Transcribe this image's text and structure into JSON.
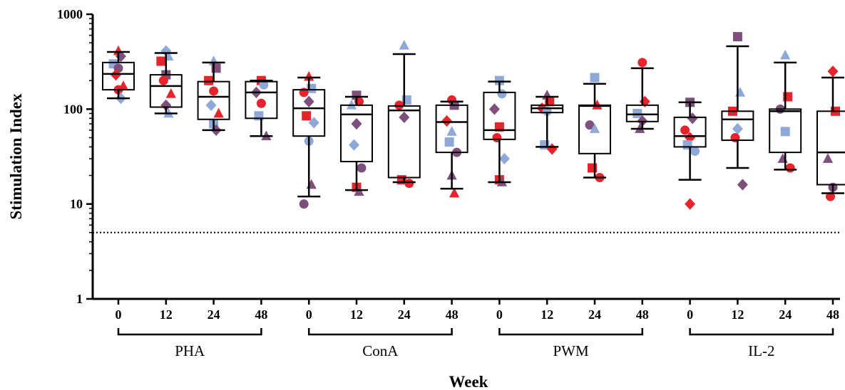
{
  "chart_data": {
    "type": "box",
    "xlabel": "Week",
    "ylabel": "Stimulation Index",
    "yscale": "log",
    "ylim": [
      1,
      1000
    ],
    "yticks": [
      "1",
      "10",
      "100",
      "1000"
    ],
    "reference_line": {
      "value": 5,
      "style": "dotted"
    },
    "groups": [
      {
        "name": "PHA",
        "boxes": [
          {
            "week": "0",
            "whisker_low": 130,
            "q1": 160,
            "median": 235,
            "q3": 310,
            "whisker_high": 400,
            "points": [
              {
                "v": 410,
                "shape": "triangle",
                "color": "red"
              },
              {
                "v": 360,
                "shape": "diamond",
                "color": "purple"
              },
              {
                "v": 300,
                "shape": "square",
                "color": "blue"
              },
              {
                "v": 270,
                "shape": "circle",
                "color": "purple"
              },
              {
                "v": 230,
                "shape": "diamond",
                "color": "red"
              },
              {
                "v": 175,
                "shape": "triangle",
                "color": "red"
              },
              {
                "v": 160,
                "shape": "circle",
                "color": "red"
              },
              {
                "v": 130,
                "shape": "diamond",
                "color": "blue"
              }
            ]
          },
          {
            "week": "12",
            "whisker_low": 90,
            "q1": 105,
            "median": 175,
            "q3": 230,
            "whisker_high": 390,
            "points": [
              {
                "v": 410,
                "shape": "diamond",
                "color": "blue"
              },
              {
                "v": 360,
                "shape": "triangle",
                "color": "blue"
              },
              {
                "v": 320,
                "shape": "square",
                "color": "red"
              },
              {
                "v": 230,
                "shape": "square",
                "color": "purple"
              },
              {
                "v": 200,
                "shape": "circle",
                "color": "red"
              },
              {
                "v": 145,
                "shape": "triangle",
                "color": "red"
              },
              {
                "v": 110,
                "shape": "diamond",
                "color": "purple"
              },
              {
                "v": 90,
                "shape": "triangle",
                "color": "blue"
              }
            ]
          },
          {
            "week": "24",
            "whisker_low": 60,
            "q1": 78,
            "median": 135,
            "q3": 195,
            "whisker_high": 310,
            "points": [
              {
                "v": 320,
                "shape": "triangle",
                "color": "blue"
              },
              {
                "v": 270,
                "shape": "square",
                "color": "purple"
              },
              {
                "v": 200,
                "shape": "square",
                "color": "red"
              },
              {
                "v": 155,
                "shape": "circle",
                "color": "red"
              },
              {
                "v": 110,
                "shape": "diamond",
                "color": "blue"
              },
              {
                "v": 90,
                "shape": "triangle",
                "color": "red"
              },
              {
                "v": 70,
                "shape": "square",
                "color": "blue"
              },
              {
                "v": 60,
                "shape": "diamond",
                "color": "purple"
              }
            ]
          },
          {
            "week": "48",
            "whisker_low": 52,
            "q1": 80,
            "median": 150,
            "q3": 195,
            "whisker_high": 200,
            "points": [
              {
                "v": 200,
                "shape": "square",
                "color": "red"
              },
              {
                "v": 180,
                "shape": "circle",
                "color": "blue"
              },
              {
                "v": 150,
                "shape": "diamond",
                "color": "purple"
              },
              {
                "v": 115,
                "shape": "circle",
                "color": "red"
              },
              {
                "v": 85,
                "shape": "square",
                "color": "blue"
              },
              {
                "v": 52,
                "shape": "triangle",
                "color": "purple"
              }
            ]
          }
        ]
      },
      {
        "name": "ConA",
        "boxes": [
          {
            "week": "0",
            "whisker_low": 12,
            "q1": 52,
            "median": 102,
            "q3": 160,
            "whisker_high": 215,
            "points": [
              {
                "v": 220,
                "shape": "triangle",
                "color": "red"
              },
              {
                "v": 165,
                "shape": "square",
                "color": "blue"
              },
              {
                "v": 150,
                "shape": "circle",
                "color": "red"
              },
              {
                "v": 120,
                "shape": "diamond",
                "color": "purple"
              },
              {
                "v": 85,
                "shape": "square",
                "color": "red"
              },
              {
                "v": 72,
                "shape": "diamond",
                "color": "blue"
              },
              {
                "v": 46,
                "shape": "circle",
                "color": "blue"
              },
              {
                "v": 16,
                "shape": "triangle",
                "color": "purple"
              },
              {
                "v": 10,
                "shape": "circle",
                "color": "purple"
              }
            ]
          },
          {
            "week": "12",
            "whisker_low": 14,
            "q1": 28,
            "median": 88,
            "q3": 110,
            "whisker_high": 135,
            "points": [
              {
                "v": 140,
                "shape": "square",
                "color": "purple"
              },
              {
                "v": 120,
                "shape": "circle",
                "color": "red"
              },
              {
                "v": 110,
                "shape": "triangle",
                "color": "blue"
              },
              {
                "v": 70,
                "shape": "diamond",
                "color": "purple"
              },
              {
                "v": 42,
                "shape": "diamond",
                "color": "blue"
              },
              {
                "v": 24,
                "shape": "circle",
                "color": "purple"
              },
              {
                "v": 15,
                "shape": "square",
                "color": "red"
              },
              {
                "v": 13.5,
                "shape": "triangle",
                "color": "purple"
              }
            ]
          },
          {
            "week": "24",
            "whisker_low": 17,
            "q1": 19,
            "median": 97,
            "q3": 108,
            "whisker_high": 380,
            "points": [
              {
                "v": 470,
                "shape": "triangle",
                "color": "blue"
              },
              {
                "v": 125,
                "shape": "square",
                "color": "blue"
              },
              {
                "v": 110,
                "shape": "circle",
                "color": "red"
              },
              {
                "v": 82,
                "shape": "diamond",
                "color": "purple"
              },
              {
                "v": 18,
                "shape": "square",
                "color": "red"
              },
              {
                "v": 16.5,
                "shape": "circle",
                "color": "red"
              }
            ]
          },
          {
            "week": "48",
            "whisker_low": 14.5,
            "q1": 35,
            "median": 73,
            "q3": 110,
            "whisker_high": 120,
            "points": [
              {
                "v": 125,
                "shape": "circle",
                "color": "red"
              },
              {
                "v": 110,
                "shape": "square",
                "color": "purple"
              },
              {
                "v": 75,
                "shape": "diamond",
                "color": "red"
              },
              {
                "v": 58,
                "shape": "triangle",
                "color": "blue"
              },
              {
                "v": 45,
                "shape": "square",
                "color": "blue"
              },
              {
                "v": 35,
                "shape": "circle",
                "color": "purple"
              },
              {
                "v": 20,
                "shape": "triangle",
                "color": "purple"
              },
              {
                "v": 13,
                "shape": "triangle",
                "color": "red"
              }
            ]
          }
        ]
      },
      {
        "name": "PWM",
        "boxes": [
          {
            "week": "0",
            "whisker_low": 17,
            "q1": 48,
            "median": 60,
            "q3": 150,
            "whisker_high": 195,
            "points": [
              {
                "v": 200,
                "shape": "square",
                "color": "blue"
              },
              {
                "v": 145,
                "shape": "circle",
                "color": "blue"
              },
              {
                "v": 100,
                "shape": "diamond",
                "color": "purple"
              },
              {
                "v": 65,
                "shape": "square",
                "color": "red"
              },
              {
                "v": 50,
                "shape": "circle",
                "color": "red"
              },
              {
                "v": 30,
                "shape": "diamond",
                "color": "blue"
              },
              {
                "v": 18,
                "shape": "square",
                "color": "red"
              },
              {
                "v": 17,
                "shape": "triangle",
                "color": "purple"
              }
            ]
          },
          {
            "week": "12",
            "whisker_low": 40,
            "q1": 92,
            "median": 102,
            "q3": 110,
            "whisker_high": 135,
            "points": [
              {
                "v": 140,
                "shape": "triangle",
                "color": "purple"
              },
              {
                "v": 120,
                "shape": "square",
                "color": "red"
              },
              {
                "v": 102,
                "shape": "diamond",
                "color": "red"
              },
              {
                "v": 95,
                "shape": "circle",
                "color": "blue"
              },
              {
                "v": 42,
                "shape": "square",
                "color": "blue"
              },
              {
                "v": 38,
                "shape": "diamond",
                "color": "red"
              }
            ]
          },
          {
            "week": "24",
            "whisker_low": 19,
            "q1": 34,
            "median": 108,
            "q3": 110,
            "whisker_high": 185,
            "points": [
              {
                "v": 215,
                "shape": "square",
                "color": "blue"
              },
              {
                "v": 110,
                "shape": "triangle",
                "color": "red"
              },
              {
                "v": 68,
                "shape": "circle",
                "color": "purple"
              },
              {
                "v": 62,
                "shape": "triangle",
                "color": "blue"
              },
              {
                "v": 24,
                "shape": "square",
                "color": "red"
              },
              {
                "v": 19,
                "shape": "circle",
                "color": "red"
              }
            ]
          },
          {
            "week": "48",
            "whisker_low": 62,
            "q1": 74,
            "median": 88,
            "q3": 110,
            "whisker_high": 270,
            "points": [
              {
                "v": 310,
                "shape": "circle",
                "color": "red"
              },
              {
                "v": 120,
                "shape": "diamond",
                "color": "red"
              },
              {
                "v": 90,
                "shape": "square",
                "color": "blue"
              },
              {
                "v": 75,
                "shape": "diamond",
                "color": "purple"
              },
              {
                "v": 62,
                "shape": "triangle",
                "color": "purple"
              }
            ]
          }
        ]
      },
      {
        "name": "IL-2",
        "boxes": [
          {
            "week": "0",
            "whisker_low": 18,
            "q1": 40,
            "median": 52,
            "q3": 82,
            "whisker_high": 118,
            "points": [
              {
                "v": 118,
                "shape": "square",
                "color": "purple"
              },
              {
                "v": 80,
                "shape": "diamond",
                "color": "purple"
              },
              {
                "v": 60,
                "shape": "circle",
                "color": "red"
              },
              {
                "v": 50,
                "shape": "diamond",
                "color": "red"
              },
              {
                "v": 42,
                "shape": "square",
                "color": "blue"
              },
              {
                "v": 36,
                "shape": "circle",
                "color": "blue"
              },
              {
                "v": 10,
                "shape": "diamond",
                "color": "red"
              }
            ]
          },
          {
            "week": "12",
            "whisker_low": 24,
            "q1": 47,
            "median": 78,
            "q3": 95,
            "whisker_high": 460,
            "points": [
              {
                "v": 580,
                "shape": "square",
                "color": "purple"
              },
              {
                "v": 150,
                "shape": "triangle",
                "color": "blue"
              },
              {
                "v": 95,
                "shape": "square",
                "color": "red"
              },
              {
                "v": 62,
                "shape": "diamond",
                "color": "blue"
              },
              {
                "v": 50,
                "shape": "circle",
                "color": "red"
              },
              {
                "v": 16,
                "shape": "diamond",
                "color": "purple"
              }
            ]
          },
          {
            "week": "24",
            "whisker_low": 23,
            "q1": 35,
            "median": 95,
            "q3": 100,
            "whisker_high": 310,
            "points": [
              {
                "v": 370,
                "shape": "triangle",
                "color": "blue"
              },
              {
                "v": 135,
                "shape": "square",
                "color": "red"
              },
              {
                "v": 100,
                "shape": "circle",
                "color": "purple"
              },
              {
                "v": 58,
                "shape": "square",
                "color": "blue"
              },
              {
                "v": 30,
                "shape": "triangle",
                "color": "purple"
              },
              {
                "v": 24,
                "shape": "circle",
                "color": "red"
              }
            ]
          },
          {
            "week": "48",
            "whisker_low": 13,
            "q1": 16,
            "median": 35,
            "q3": 95,
            "whisker_high": 215,
            "points": [
              {
                "v": 250,
                "shape": "diamond",
                "color": "red"
              },
              {
                "v": 95,
                "shape": "square",
                "color": "red"
              },
              {
                "v": 30,
                "shape": "triangle",
                "color": "purple"
              },
              {
                "v": 15,
                "shape": "circle",
                "color": "purple"
              },
              {
                "v": 12,
                "shape": "circle",
                "color": "red"
              }
            ]
          }
        ]
      }
    ]
  },
  "colors": {
    "red": "#e8232b",
    "blue": "#8ea9d8",
    "purple": "#7e4f7c",
    "axis": "#000000"
  }
}
